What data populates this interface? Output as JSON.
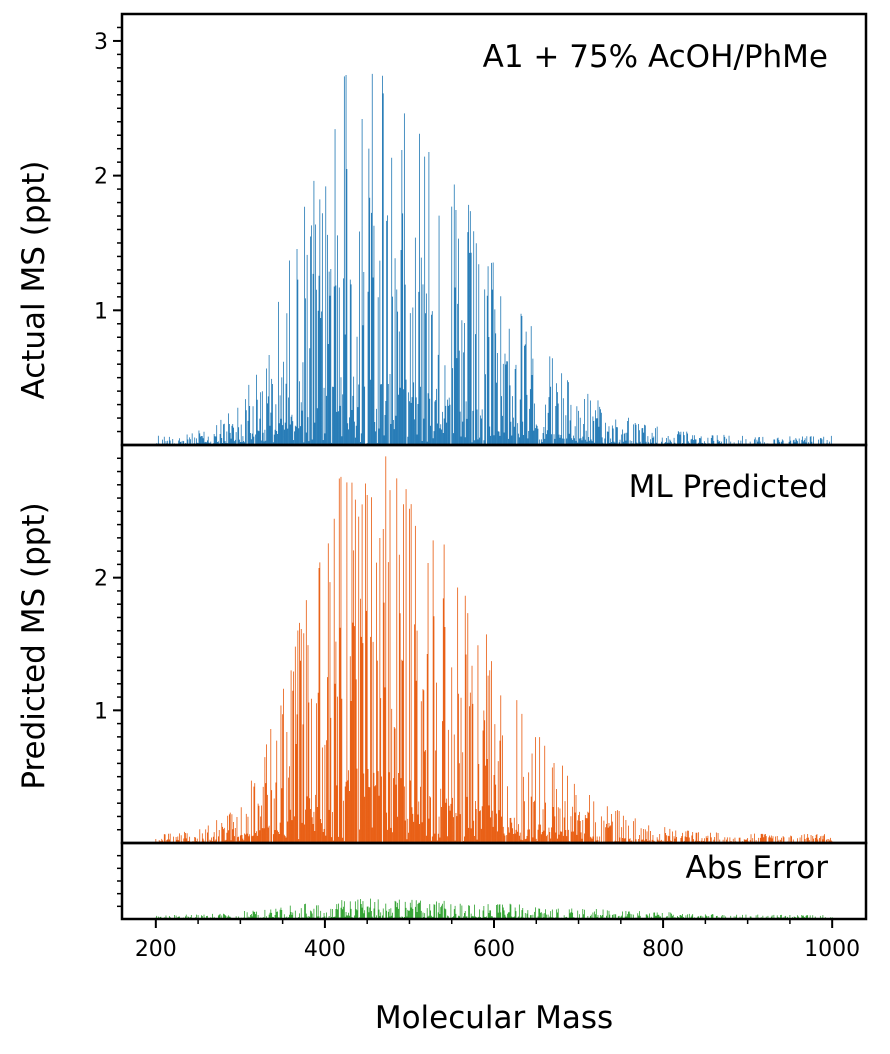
{
  "chart_data": [
    {
      "type": "bar",
      "panel": "actual",
      "title": "A1 + 75% AcOH/PhMe",
      "ylabel": "Actual MS (ppt)",
      "yticks": [
        1,
        2,
        3
      ],
      "ylim": [
        0,
        3.2
      ],
      "color": "#1f77b4",
      "envelope": {
        "center": 440,
        "sigma_left": 65,
        "sigma_right": 130,
        "peak": 2.2,
        "floor": 0.05
      }
    },
    {
      "type": "bar",
      "panel": "predicted",
      "title": "ML Predicted",
      "ylabel": "Predicted MS (ppt)",
      "yticks": [
        1,
        2
      ],
      "ylim": [
        0,
        3.0
      ],
      "color": "#e8590c",
      "envelope": {
        "center": 440,
        "sigma_left": 65,
        "sigma_right": 130,
        "peak": 2.25,
        "floor": 0.05
      }
    },
    {
      "type": "bar",
      "panel": "error",
      "title": "Abs Error",
      "ylabel": "",
      "yticks": [],
      "ylim": [
        0,
        0.6
      ],
      "color": "#2ca02c",
      "envelope": {
        "center": 450,
        "sigma_left": 90,
        "sigma_right": 200,
        "peak": 0.12,
        "floor": 0.02
      }
    }
  ],
  "x_axis": {
    "label": "Molecular Mass",
    "xlim": [
      160,
      1040
    ],
    "ticks": [
      200,
      400,
      600,
      800,
      1000
    ],
    "data_range": [
      200,
      1000
    ]
  }
}
